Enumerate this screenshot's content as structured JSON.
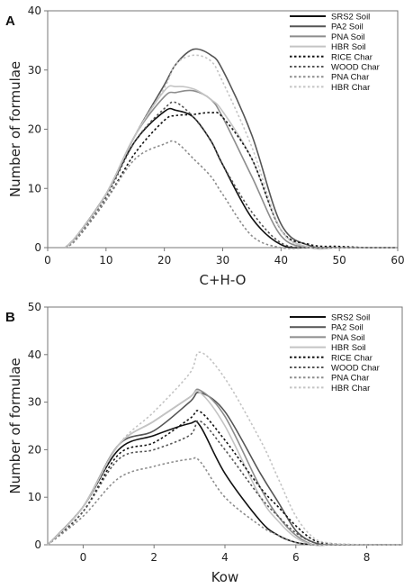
{
  "chart_data": [
    {
      "panel_label": "A",
      "type": "line",
      "xlabel": "C+H-O",
      "ylabel": "Number of formulae",
      "xlim": [
        0,
        60
      ],
      "ylim": [
        0,
        40
      ],
      "xticks": [
        0,
        10,
        20,
        30,
        40,
        50,
        60
      ],
      "yticks": [
        0,
        10,
        20,
        30,
        40
      ],
      "grid": false,
      "legend_position": "top-right",
      "x": [
        3,
        5,
        10,
        15,
        20,
        22,
        25,
        28,
        30,
        35,
        40,
        45,
        50,
        55,
        60
      ],
      "series": [
        {
          "name": "SRS2 Soil",
          "color": "#111111",
          "dash": "solid",
          "values": [
            0,
            2,
            9,
            18,
            23,
            23.2,
            22,
            18,
            14,
            5,
            0.5,
            0,
            0,
            0,
            0
          ]
        },
        {
          "name": "PA2 Soil",
          "color": "#555555",
          "dash": "solid",
          "values": [
            0,
            2,
            9,
            19,
            27.5,
            31,
            33.5,
            32.5,
            30,
            19,
            4,
            0.3,
            0,
            0,
            0
          ]
        },
        {
          "name": "PNA Soil",
          "color": "#8c8c8c",
          "dash": "solid",
          "values": [
            0,
            2,
            9,
            19,
            25.5,
            26.2,
            26.5,
            25,
            22,
            12,
            2,
            0,
            0,
            0,
            0
          ]
        },
        {
          "name": "HBR Soil",
          "color": "#c4c4c4",
          "dash": "solid",
          "values": [
            0,
            2,
            9,
            19,
            26.5,
            27.2,
            26.8,
            25,
            23,
            15,
            3,
            0,
            0,
            0,
            0
          ]
        },
        {
          "name": "RICE Char",
          "color": "#111111",
          "dash": "dotted",
          "values": [
            0,
            1.5,
            8,
            16,
            21.5,
            22.3,
            22.5,
            22.8,
            22,
            15,
            3,
            0.5,
            0.2,
            0,
            0
          ]
        },
        {
          "name": "WOOD Char",
          "color": "#555555",
          "dash": "dotted",
          "values": [
            0,
            1.8,
            8.5,
            18,
            23.5,
            24.5,
            22,
            18,
            14,
            6,
            0.8,
            0,
            0,
            0,
            0
          ]
        },
        {
          "name": "PNA Char",
          "color": "#8c8c8c",
          "dash": "dotted",
          "values": [
            0,
            1.5,
            8,
            15,
            17.5,
            17.8,
            15,
            12,
            9,
            2,
            0,
            0,
            0,
            0,
            0
          ]
        },
        {
          "name": "HBR Char",
          "color": "#c4c4c4",
          "dash": "dotted",
          "values": [
            0,
            2,
            9,
            19,
            27,
            31,
            32.5,
            31.5,
            28,
            17,
            3,
            0,
            0,
            0,
            0
          ]
        }
      ]
    },
    {
      "panel_label": "B",
      "type": "line",
      "xlabel": "Kow",
      "ylabel": "Number of formulae",
      "xlim": [
        -1,
        9
      ],
      "ylim": [
        0,
        50
      ],
      "xticks": [
        0,
        2,
        4,
        6,
        8
      ],
      "yticks": [
        0,
        10,
        20,
        30,
        40,
        50
      ],
      "grid": false,
      "legend_position": "top-right",
      "x": [
        -1,
        0,
        1,
        2,
        3,
        3.3,
        4,
        5,
        5.5,
        6,
        6.5,
        7,
        8,
        9
      ],
      "series": [
        {
          "name": "SRS2 Soil",
          "color": "#111111",
          "dash": "solid",
          "values": [
            0,
            8,
            20,
            23,
            25.5,
            25,
            15,
            5,
            2,
            0.5,
            0,
            0,
            0,
            0
          ]
        },
        {
          "name": "PA2 Soil",
          "color": "#555555",
          "dash": "solid",
          "values": [
            0,
            8,
            21,
            24,
            30,
            32,
            28,
            15,
            9,
            3,
            0.5,
            0,
            0,
            0
          ]
        },
        {
          "name": "PNA Soil",
          "color": "#8c8c8c",
          "dash": "solid",
          "values": [
            0,
            8,
            21,
            26,
            31,
            32.5,
            27,
            12,
            6,
            2,
            0,
            0,
            0,
            0
          ]
        },
        {
          "name": "HBR Soil",
          "color": "#c4c4c4",
          "dash": "solid",
          "values": [
            0,
            8,
            21,
            26,
            31,
            32,
            25,
            10,
            5,
            1.5,
            0,
            0,
            0,
            0
          ]
        },
        {
          "name": "RICE Char",
          "color": "#111111",
          "dash": "dotted",
          "values": [
            0,
            7,
            19,
            21.5,
            26.5,
            28,
            22,
            12,
            8,
            4,
            1,
            0.2,
            0,
            0
          ]
        },
        {
          "name": "WOOD Char",
          "color": "#555555",
          "dash": "dotted",
          "values": [
            0,
            7,
            18,
            20,
            23,
            26,
            20,
            10,
            6,
            2.5,
            0.5,
            0,
            0,
            0
          ]
        },
        {
          "name": "PNA Char",
          "color": "#8c8c8c",
          "dash": "dotted",
          "values": [
            0,
            6,
            14,
            16.5,
            18,
            17.5,
            10,
            4,
            2,
            0.5,
            0,
            0,
            0,
            0
          ]
        },
        {
          "name": "HBR Char",
          "color": "#c4c4c4",
          "dash": "dotted",
          "values": [
            0,
            8,
            21,
            28,
            36,
            40.5,
            35,
            22,
            14,
            6,
            1.5,
            0.3,
            0,
            0
          ]
        }
      ]
    }
  ]
}
